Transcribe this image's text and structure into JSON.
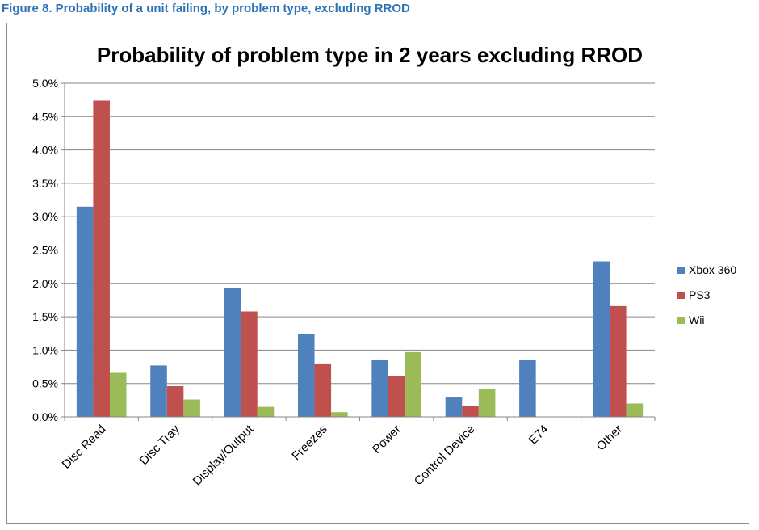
{
  "figure_caption": "Figure 8.  Probability of a unit failing, by problem type, excluding RROD",
  "chart_data": {
    "type": "bar",
    "title": "Probability of problem type in 2 years excluding RROD",
    "xlabel": "",
    "ylabel": "",
    "categories": [
      "Disc Read",
      "Disc Tray",
      "Display/Output",
      "Freezes",
      "Power",
      "Control Device",
      "E74",
      "Other"
    ],
    "series": [
      {
        "name": "Xbox 360",
        "color": "#4f81bd",
        "values": [
          3.15,
          0.77,
          1.93,
          1.24,
          0.86,
          0.29,
          0.86,
          2.33
        ]
      },
      {
        "name": "PS3",
        "color": "#c0504d",
        "values": [
          4.74,
          0.46,
          1.58,
          0.8,
          0.61,
          0.17,
          0.0,
          1.66
        ]
      },
      {
        "name": "Wii",
        "color": "#9bbb59",
        "values": [
          0.66,
          0.26,
          0.15,
          0.07,
          0.97,
          0.42,
          0.0,
          0.2
        ]
      }
    ],
    "ylim": [
      0,
      5
    ],
    "ytick_values": [
      0,
      0.5,
      1.0,
      1.5,
      2.0,
      2.5,
      3.0,
      3.5,
      4.0,
      4.5,
      5.0
    ],
    "ytick_labels": [
      "0.0%",
      "0.5%",
      "1.0%",
      "1.5%",
      "2.0%",
      "2.5%",
      "3.0%",
      "3.5%",
      "4.0%",
      "4.5%",
      "5.0%"
    ],
    "grid": true,
    "legend_position": "right",
    "gridline_color": "#868686"
  }
}
